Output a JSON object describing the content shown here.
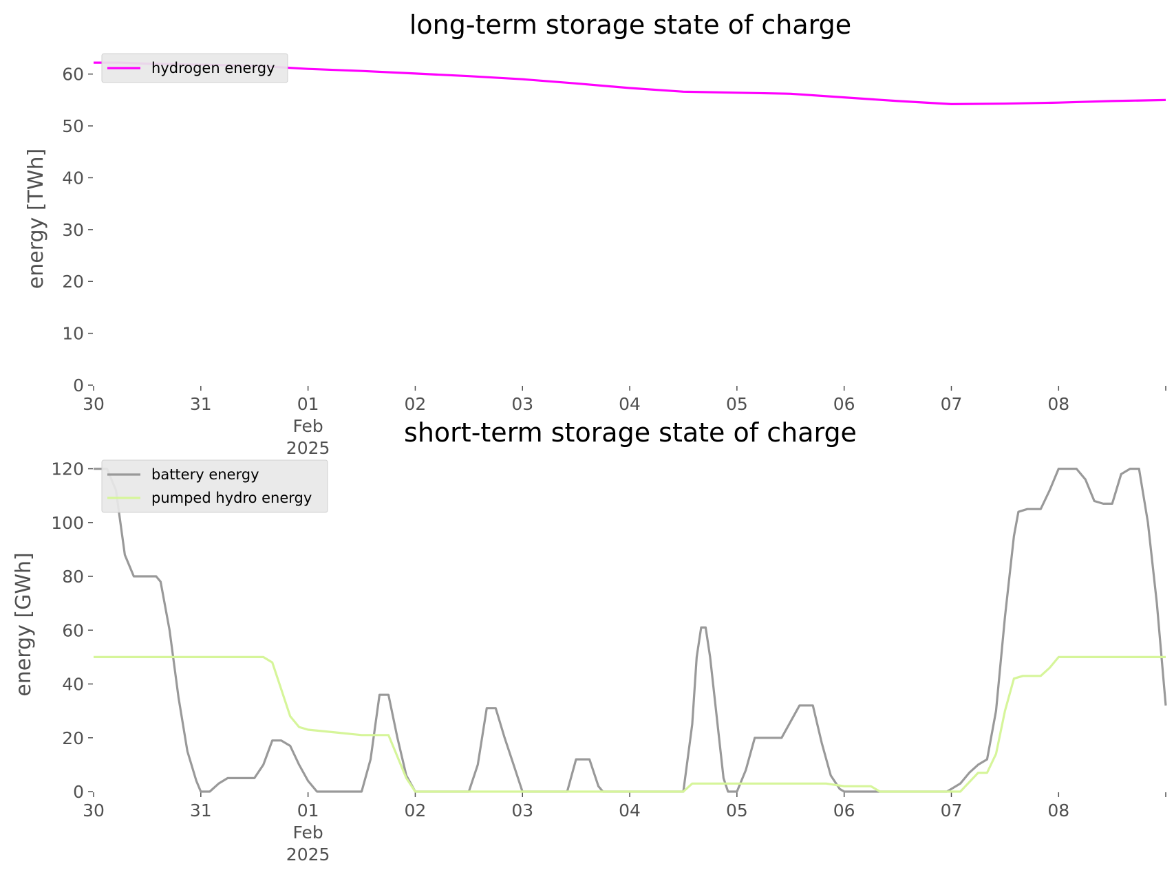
{
  "chart_data": [
    {
      "type": "line",
      "title": "long-term storage state of charge",
      "ylabel": "energy [TWh]",
      "xlabel": "",
      "x_domain": [
        "2025-01-30T00:00",
        "2025-02-08T23:59"
      ],
      "ylim": [
        0,
        65
      ],
      "yticks": [
        0,
        10,
        20,
        30,
        40,
        50,
        60
      ],
      "x_ticks": [
        {
          "date": "2025-01-30T00:00",
          "label": "30",
          "sub": []
        },
        {
          "date": "2025-01-31T00:00",
          "label": "31",
          "sub": []
        },
        {
          "date": "2025-02-01T00:00",
          "label": "01",
          "sub": [
            "Feb",
            "2025"
          ]
        },
        {
          "date": "2025-02-02T00:00",
          "label": "02",
          "sub": []
        },
        {
          "date": "2025-02-03T00:00",
          "label": "03",
          "sub": []
        },
        {
          "date": "2025-02-04T00:00",
          "label": "04",
          "sub": []
        },
        {
          "date": "2025-02-05T00:00",
          "label": "05",
          "sub": []
        },
        {
          "date": "2025-02-06T00:00",
          "label": "06",
          "sub": []
        },
        {
          "date": "2025-02-07T00:00",
          "label": "07",
          "sub": []
        },
        {
          "date": "2025-02-08T00:00",
          "label": "08",
          "sub": []
        },
        {
          "date": "2025-02-08T23:59",
          "label": "",
          "sub": []
        }
      ],
      "grid": false,
      "legend_position": "top-left",
      "series": [
        {
          "name": "hydrogen energy",
          "color": "#ff00ff",
          "points": [
            [
              "2025-01-30T00:00",
              62.2
            ],
            [
              "2025-01-30T06:00",
              62.2
            ],
            [
              "2025-01-30T12:00",
              62.0
            ],
            [
              "2025-01-30T18:00",
              61.9
            ],
            [
              "2025-01-31T00:00",
              61.8
            ],
            [
              "2025-01-31T12:00",
              61.6
            ],
            [
              "2025-02-01T00:00",
              61.0
            ],
            [
              "2025-02-01T12:00",
              60.6
            ],
            [
              "2025-02-02T00:00",
              60.1
            ],
            [
              "2025-02-02T12:00",
              59.6
            ],
            [
              "2025-02-03T00:00",
              59.0
            ],
            [
              "2025-02-03T12:00",
              58.2
            ],
            [
              "2025-02-04T00:00",
              57.3
            ],
            [
              "2025-02-04T12:00",
              56.6
            ],
            [
              "2025-02-05T00:00",
              56.4
            ],
            [
              "2025-02-05T12:00",
              56.2
            ],
            [
              "2025-02-06T00:00",
              55.5
            ],
            [
              "2025-02-06T12:00",
              54.8
            ],
            [
              "2025-02-07T00:00",
              54.2
            ],
            [
              "2025-02-07T12:00",
              54.3
            ],
            [
              "2025-02-08T00:00",
              54.5
            ],
            [
              "2025-02-08T12:00",
              54.8
            ],
            [
              "2025-02-08T23:59",
              55.0
            ]
          ]
        }
      ]
    },
    {
      "type": "line",
      "title": "short-term storage state of charge",
      "ylabel": "energy [GWh]",
      "xlabel": "",
      "x_domain": [
        "2025-01-30T00:00",
        "2025-02-08T23:59"
      ],
      "ylim": [
        0,
        125
      ],
      "yticks": [
        0,
        20,
        40,
        60,
        80,
        100,
        120
      ],
      "x_ticks": [
        {
          "date": "2025-01-30T00:00",
          "label": "30",
          "sub": []
        },
        {
          "date": "2025-01-31T00:00",
          "label": "31",
          "sub": []
        },
        {
          "date": "2025-02-01T00:00",
          "label": "01",
          "sub": [
            "Feb",
            "2025"
          ]
        },
        {
          "date": "2025-02-02T00:00",
          "label": "02",
          "sub": []
        },
        {
          "date": "2025-02-03T00:00",
          "label": "03",
          "sub": []
        },
        {
          "date": "2025-02-04T00:00",
          "label": "04",
          "sub": []
        },
        {
          "date": "2025-02-05T00:00",
          "label": "05",
          "sub": []
        },
        {
          "date": "2025-02-06T00:00",
          "label": "06",
          "sub": []
        },
        {
          "date": "2025-02-07T00:00",
          "label": "07",
          "sub": []
        },
        {
          "date": "2025-02-08T00:00",
          "label": "08",
          "sub": []
        },
        {
          "date": "2025-02-08T23:59",
          "label": "",
          "sub": []
        }
      ],
      "grid": false,
      "legend_position": "top-left",
      "series": [
        {
          "name": "battery energy",
          "color": "#999999",
          "points": [
            [
              "2025-01-30T00:00",
              120
            ],
            [
              "2025-01-30T03:00",
              120
            ],
            [
              "2025-01-30T05:00",
              112
            ],
            [
              "2025-01-30T07:00",
              88
            ],
            [
              "2025-01-30T09:00",
              80
            ],
            [
              "2025-01-30T12:00",
              80
            ],
            [
              "2025-01-30T14:00",
              80
            ],
            [
              "2025-01-30T15:00",
              78
            ],
            [
              "2025-01-30T17:00",
              60
            ],
            [
              "2025-01-30T19:00",
              35
            ],
            [
              "2025-01-30T21:00",
              15
            ],
            [
              "2025-01-30T23:00",
              4
            ],
            [
              "2025-01-31T00:00",
              0
            ],
            [
              "2025-01-31T02:00",
              0
            ],
            [
              "2025-01-31T04:00",
              3
            ],
            [
              "2025-01-31T06:00",
              5
            ],
            [
              "2025-01-31T12:00",
              5
            ],
            [
              "2025-01-31T14:00",
              10
            ],
            [
              "2025-01-31T16:00",
              19
            ],
            [
              "2025-01-31T18:00",
              19
            ],
            [
              "2025-01-31T20:00",
              17
            ],
            [
              "2025-01-31T22:00",
              10
            ],
            [
              "2025-02-01T00:00",
              4
            ],
            [
              "2025-02-01T02:00",
              0
            ],
            [
              "2025-02-01T12:00",
              0
            ],
            [
              "2025-02-01T14:00",
              12
            ],
            [
              "2025-02-01T16:00",
              36
            ],
            [
              "2025-02-01T18:00",
              36
            ],
            [
              "2025-02-01T20:00",
              20
            ],
            [
              "2025-02-01T22:00",
              6
            ],
            [
              "2025-02-02T00:00",
              0
            ],
            [
              "2025-02-02T12:00",
              0
            ],
            [
              "2025-02-02T14:00",
              10
            ],
            [
              "2025-02-02T16:00",
              31
            ],
            [
              "2025-02-02T18:00",
              31
            ],
            [
              "2025-02-02T20:00",
              20
            ],
            [
              "2025-02-02T22:00",
              10
            ],
            [
              "2025-02-03T00:00",
              0
            ],
            [
              "2025-02-03T10:00",
              0
            ],
            [
              "2025-02-03T12:00",
              12
            ],
            [
              "2025-02-03T15:00",
              12
            ],
            [
              "2025-02-03T17:00",
              2
            ],
            [
              "2025-02-03T18:00",
              0
            ],
            [
              "2025-02-04T12:00",
              0
            ],
            [
              "2025-02-04T14:00",
              25
            ],
            [
              "2025-02-04T15:00",
              50
            ],
            [
              "2025-02-04T16:00",
              61
            ],
            [
              "2025-02-04T17:00",
              61
            ],
            [
              "2025-02-04T18:00",
              50
            ],
            [
              "2025-02-04T20:00",
              20
            ],
            [
              "2025-02-04T21:00",
              5
            ],
            [
              "2025-02-04T22:00",
              0
            ],
            [
              "2025-02-05T00:00",
              0
            ],
            [
              "2025-02-05T02:00",
              8
            ],
            [
              "2025-02-05T04:00",
              20
            ],
            [
              "2025-02-05T06:00",
              20
            ],
            [
              "2025-02-05T10:00",
              20
            ],
            [
              "2025-02-05T12:00",
              26
            ],
            [
              "2025-02-05T14:00",
              32
            ],
            [
              "2025-02-05T17:00",
              32
            ],
            [
              "2025-02-05T19:00",
              18
            ],
            [
              "2025-02-05T21:00",
              6
            ],
            [
              "2025-02-05T23:00",
              1
            ],
            [
              "2025-02-06T00:00",
              0
            ],
            [
              "2025-02-06T12:00",
              0
            ],
            [
              "2025-02-06T23:00",
              0
            ],
            [
              "2025-02-07T00:00",
              1
            ],
            [
              "2025-02-07T02:00",
              3
            ],
            [
              "2025-02-07T04:00",
              7
            ],
            [
              "2025-02-07T06:00",
              10
            ],
            [
              "2025-02-07T08:00",
              12
            ],
            [
              "2025-02-07T10:00",
              30
            ],
            [
              "2025-02-07T12:00",
              65
            ],
            [
              "2025-02-07T14:00",
              95
            ],
            [
              "2025-02-07T15:00",
              104
            ],
            [
              "2025-02-07T17:00",
              105
            ],
            [
              "2025-02-07T20:00",
              105
            ],
            [
              "2025-02-07T22:00",
              112
            ],
            [
              "2025-02-08T00:00",
              120
            ],
            [
              "2025-02-08T04:00",
              120
            ],
            [
              "2025-02-08T06:00",
              116
            ],
            [
              "2025-02-08T08:00",
              108
            ],
            [
              "2025-02-08T10:00",
              107
            ],
            [
              "2025-02-08T12:00",
              107
            ],
            [
              "2025-02-08T14:00",
              118
            ],
            [
              "2025-02-08T16:00",
              120
            ],
            [
              "2025-02-08T18:00",
              120
            ],
            [
              "2025-02-08T20:00",
              100
            ],
            [
              "2025-02-08T22:00",
              70
            ],
            [
              "2025-02-08T23:59",
              32
            ]
          ]
        },
        {
          "name": "pumped hydro energy",
          "color": "#d6f59a",
          "points": [
            [
              "2025-01-30T00:00",
              50
            ],
            [
              "2025-01-31T14:00",
              50
            ],
            [
              "2025-01-31T16:00",
              48
            ],
            [
              "2025-01-31T18:00",
              38
            ],
            [
              "2025-01-31T20:00",
              28
            ],
            [
              "2025-01-31T22:00",
              24
            ],
            [
              "2025-02-01T00:00",
              23
            ],
            [
              "2025-02-01T06:00",
              22
            ],
            [
              "2025-02-01T12:00",
              21
            ],
            [
              "2025-02-01T18:00",
              21
            ],
            [
              "2025-02-01T20:00",
              13
            ],
            [
              "2025-02-01T22:00",
              5
            ],
            [
              "2025-02-02T00:00",
              0
            ],
            [
              "2025-02-04T12:00",
              0
            ],
            [
              "2025-02-04T14:00",
              3
            ],
            [
              "2025-02-05T16:00",
              3
            ],
            [
              "2025-02-05T20:00",
              3
            ],
            [
              "2025-02-06T00:00",
              2
            ],
            [
              "2025-02-06T06:00",
              2
            ],
            [
              "2025-02-06T08:00",
              0
            ],
            [
              "2025-02-07T00:00",
              0
            ],
            [
              "2025-02-07T02:00",
              0
            ],
            [
              "2025-02-07T06:00",
              7
            ],
            [
              "2025-02-07T08:00",
              7
            ],
            [
              "2025-02-07T10:00",
              14
            ],
            [
              "2025-02-07T12:00",
              30
            ],
            [
              "2025-02-07T14:00",
              42
            ],
            [
              "2025-02-07T16:00",
              43
            ],
            [
              "2025-02-07T20:00",
              43
            ],
            [
              "2025-02-07T22:00",
              46
            ],
            [
              "2025-02-08T00:00",
              50
            ],
            [
              "2025-02-08T23:59",
              50
            ]
          ]
        }
      ]
    }
  ]
}
